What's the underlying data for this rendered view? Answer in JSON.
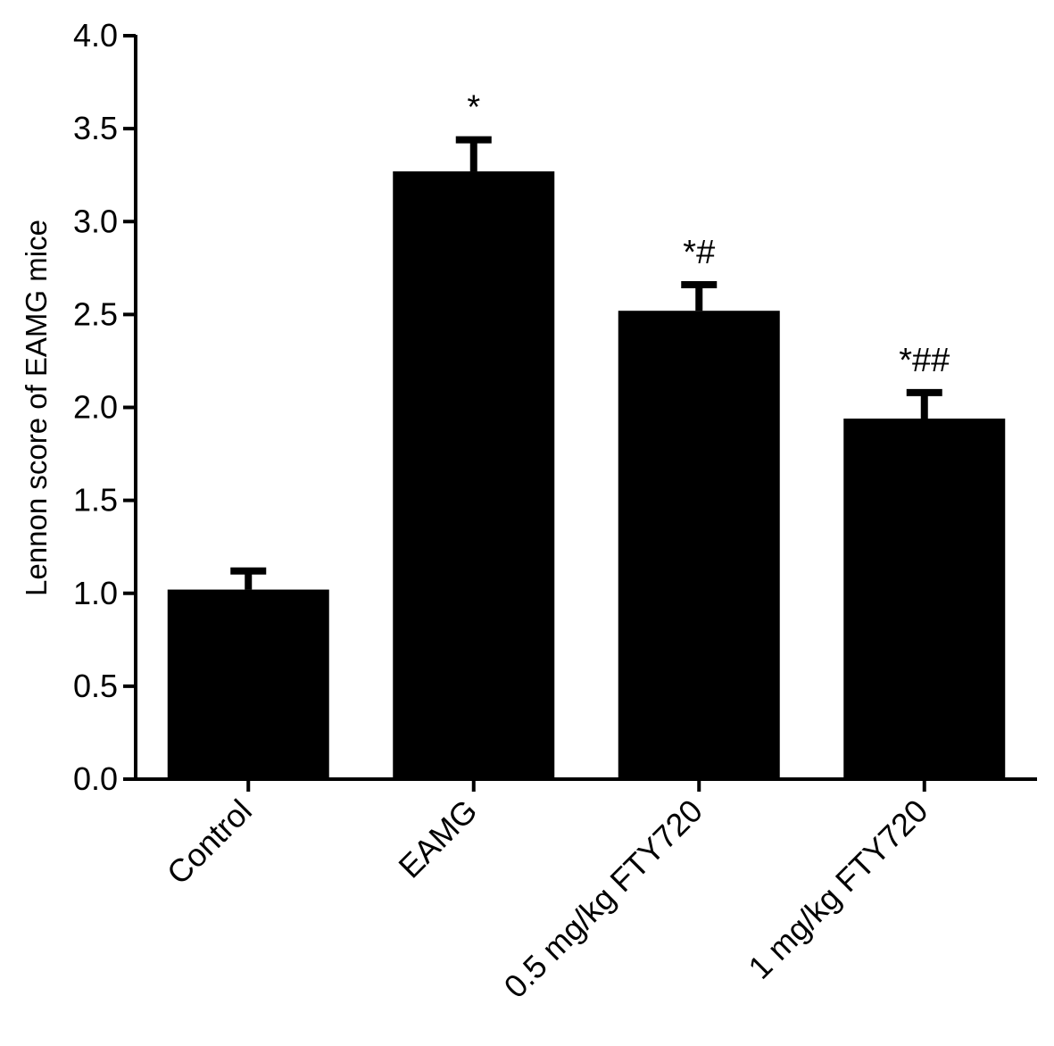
{
  "chart_data": {
    "type": "bar",
    "title": "",
    "xlabel": "",
    "ylabel": "Lennon score of EAMG mice",
    "ylim": [
      0,
      4.0
    ],
    "yticks": [
      "0.0",
      "0.5",
      "1.0",
      "1.5",
      "2.0",
      "2.5",
      "3.0",
      "3.5",
      "4.0"
    ],
    "categories": [
      "Control",
      "EAMG",
      "0.5 mg/kg FTY720",
      "1 mg/kg FTY720"
    ],
    "values": [
      1.02,
      3.27,
      2.52,
      1.94
    ],
    "errors": [
      0.1,
      0.17,
      0.14,
      0.14
    ],
    "annotations": [
      "",
      "*",
      "*#",
      "*##"
    ],
    "bar_color": "#000000",
    "grid": false
  }
}
